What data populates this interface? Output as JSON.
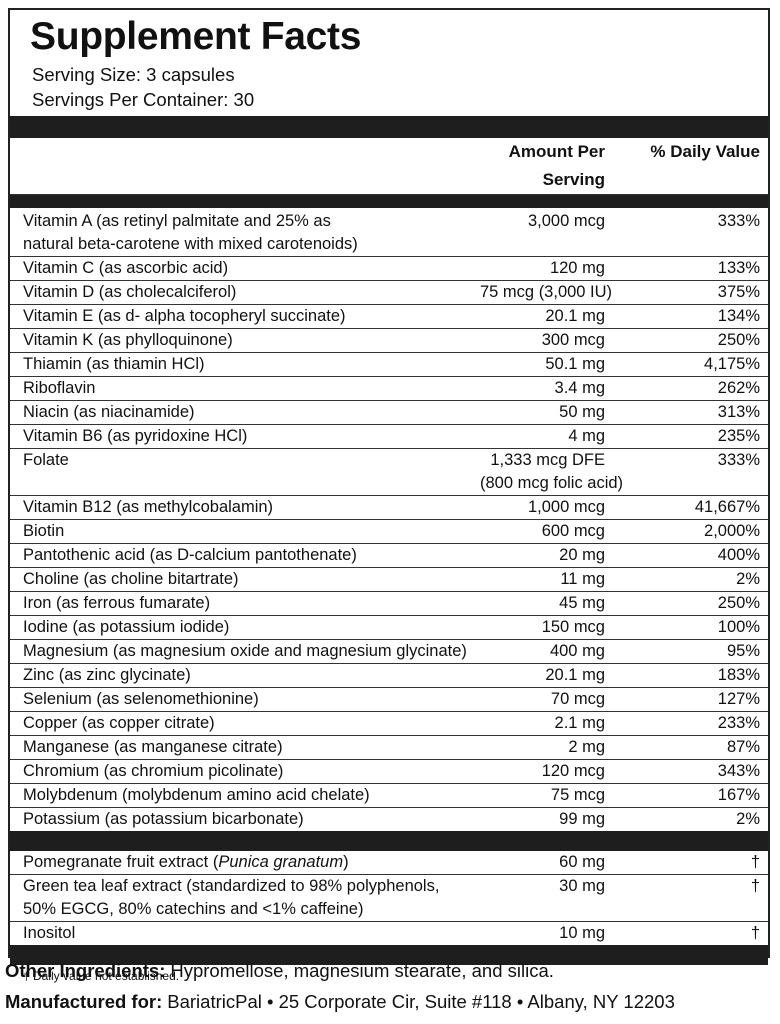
{
  "header": {
    "title": "Supplement Facts",
    "serving_size": "Serving Size: 3 capsules",
    "servings_per_container": "Servings Per Container: 30"
  },
  "table": {
    "columns": [
      "Amount Per Serving",
      "% Daily Value"
    ],
    "rows": [
      {
        "name": [
          "Vitamin A (as retinyl palmitate and 25% as",
          "natural beta-carotene with mixed carotenoids)"
        ],
        "amount": "3,000 mcg",
        "dv": "333%"
      },
      {
        "name": "Vitamin C (as ascorbic acid)",
        "amount": "120 mg",
        "dv": "133%"
      },
      {
        "name": "Vitamin D (as cholecalciferol)",
        "amount": "75 mcg (3,000 IU)",
        "dv": "375%"
      },
      {
        "name": "Vitamin E (as d- alpha tocopheryl succinate)",
        "amount": "20.1 mg",
        "dv": "134%"
      },
      {
        "name": "Vitamin K (as phylloquinone)",
        "amount": "300 mcg",
        "dv": "250%"
      },
      {
        "name": "Thiamin (as thiamin HCl)",
        "amount": "50.1 mg",
        "dv": "4,175%"
      },
      {
        "name": "Riboflavin",
        "amount": "3.4 mg",
        "dv": "262%"
      },
      {
        "name": "Niacin (as niacinamide)",
        "amount": "50 mg",
        "dv": "313%"
      },
      {
        "name": "Vitamin B6 (as pyridoxine HCl)",
        "amount": "4 mg",
        "dv": "235%"
      },
      {
        "name": "Folate",
        "amount": [
          "1,333 mcg DFE",
          "(800 mcg folic acid)"
        ],
        "dv": "333%"
      },
      {
        "name": "Vitamin B12 (as methylcobalamin)",
        "amount": "1,000 mcg",
        "dv": "41,667%"
      },
      {
        "name": "Biotin",
        "amount": "600 mcg",
        "dv": "2,000%"
      },
      {
        "name": "Pantothenic acid (as D-calcium pantothenate)",
        "amount": "20 mg",
        "dv": "400%"
      },
      {
        "name": "Choline (as choline bitartrate)",
        "amount": "11 mg",
        "dv": "2%"
      },
      {
        "name": "Iron (as ferrous fumarate)",
        "amount": "45 mg",
        "dv": "250%"
      },
      {
        "name": "Iodine (as potassium iodide)",
        "amount": "150 mcg",
        "dv": "100%"
      },
      {
        "name": "Magnesium (as magnesium oxide and magnesium glycinate)",
        "amount": "400 mg",
        "dv": "95%"
      },
      {
        "name": "Zinc (as zinc glycinate)",
        "amount": "20.1 mg",
        "dv": "183%"
      },
      {
        "name": "Selenium (as selenomethionine)",
        "amount": "70 mcg",
        "dv": "127%"
      },
      {
        "name": "Copper (as copper citrate)",
        "amount": "2.1 mg",
        "dv": "233%"
      },
      {
        "name": "Manganese (as manganese citrate)",
        "amount": "2 mg",
        "dv": "87%"
      },
      {
        "name": "Chromium (as chromium picolinate)",
        "amount": "120 mcg",
        "dv": "343%"
      },
      {
        "name": "Molybdenum (molybdenum amino acid chelate)",
        "amount": "75 mcg",
        "dv": "167%"
      },
      {
        "name": "Potassium (as potassium bicarbonate)",
        "amount": "99 mg",
        "dv": "2%"
      }
    ],
    "other_rows": [
      {
        "name_parts": [
          "Pomegranate fruit extract (",
          "Punica granatum",
          ")"
        ],
        "amount": "60 mg",
        "dv": "†"
      },
      {
        "name": [
          "Green tea leaf extract (standardized to 98% polyphenols,",
          "50% EGCG, 80% catechins and <1% caffeine)"
        ],
        "amount": "30 mg",
        "dv": "†"
      },
      {
        "name": "Inositol",
        "amount": "10 mg",
        "dv": "†"
      }
    ]
  },
  "footnote": "† Daily value not established.",
  "other_ingredients": {
    "label": "Other Ingredients:",
    "text": "Hypromellose, magnesium stearate, and silica."
  },
  "manufactured_for": {
    "label": "Manufactured for:",
    "text": "BariatricPal • 25 Corporate Cir, Suite #118 • Albany, NY 12203"
  }
}
